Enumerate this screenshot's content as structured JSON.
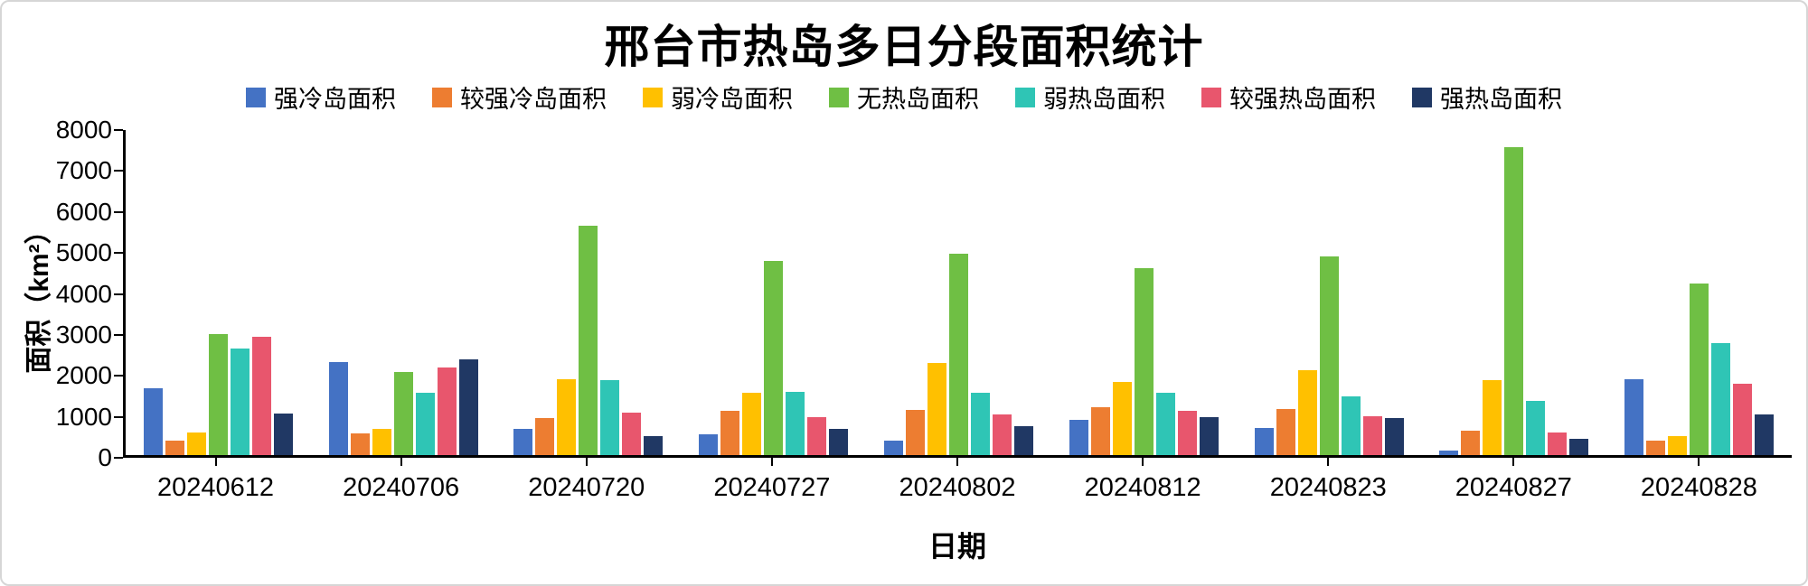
{
  "chart_data": {
    "type": "bar",
    "title": "邢台市热岛多日分段面积统计",
    "xlabel": "日期",
    "ylabel": "面积（km²）",
    "ylim": [
      0,
      8000
    ],
    "ytick_step": 1000,
    "grid": false,
    "legend_position": "top",
    "background_color": "#ffffff",
    "axis_color": "#000000",
    "categories": [
      "20240612",
      "20240706",
      "20240720",
      "20240727",
      "20240802",
      "20240812",
      "20240823",
      "20240827",
      "20240828"
    ],
    "series": [
      {
        "name": "强冷岛面积",
        "color": "#4472C4",
        "values": [
          1650,
          2280,
          650,
          510,
          360,
          860,
          670,
          120,
          1860
        ]
      },
      {
        "name": "较强冷岛面积",
        "color": "#ED7D31",
        "values": [
          350,
          530,
          920,
          1080,
          1110,
          1170,
          1130,
          590,
          350
        ]
      },
      {
        "name": "弱冷岛面积",
        "color": "#FFC000",
        "values": [
          550,
          650,
          1870,
          1530,
          2260,
          1810,
          2080,
          1850,
          470
        ]
      },
      {
        "name": "无热岛面积",
        "color": "#6FBF44",
        "values": [
          2970,
          2050,
          5640,
          4780,
          4950,
          4600,
          4890,
          7570,
          4220
        ]
      },
      {
        "name": "弱热岛面积",
        "color": "#2FC5B5",
        "values": [
          2630,
          1540,
          1840,
          1550,
          1540,
          1540,
          1440,
          1340,
          2760
        ]
      },
      {
        "name": "较强热岛面积",
        "color": "#E8566D",
        "values": [
          2920,
          2150,
          1040,
          940,
          990,
          1080,
          950,
          550,
          1760
        ]
      },
      {
        "name": "强热岛面积",
        "color": "#203864",
        "values": [
          1030,
          2360,
          470,
          650,
          720,
          930,
          910,
          390,
          1000
        ]
      }
    ]
  }
}
